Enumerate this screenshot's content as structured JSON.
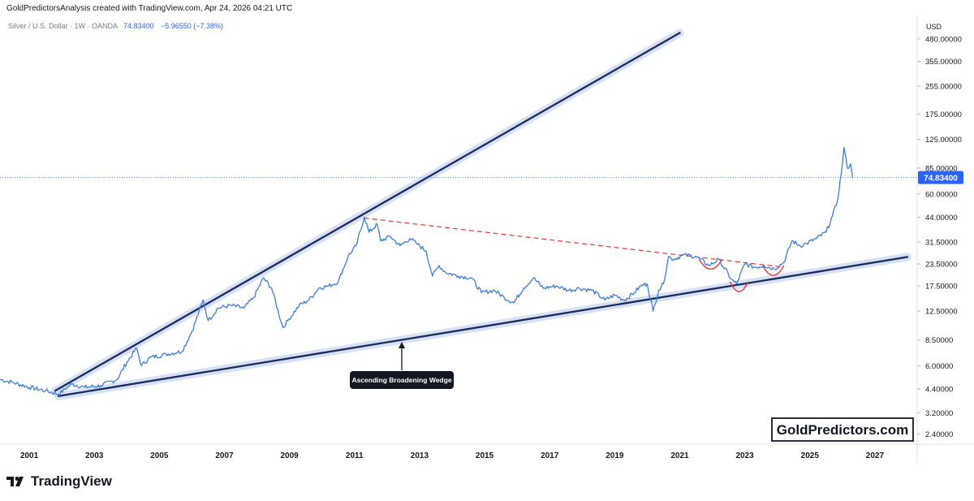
{
  "header": {
    "text": "GoldPredictorsAnalysis created with TradingView.com, Apr 24, 2026 04:21 UTC"
  },
  "legend": {
    "symbol": "Silver / U.S. Dollar · 1W · OANDA",
    "price": "74.83400",
    "change": "−5.96550 (−7.38%)",
    "price_color": "#2962ff",
    "change_color": "#2962ff"
  },
  "currency_label": "USD",
  "watermark": "GoldPredictors.com",
  "pattern_label": "Ascending Broadening Wedge",
  "brand": {
    "name": "TradingView",
    "icon": "tradingview-logo-icon"
  },
  "colors": {
    "series": "#3b7dd8",
    "trendline": "#1a2a5e",
    "trendline_glow": "#c9d7f2",
    "resistance_dashed": "#e53935",
    "cup_arcs": "#e53935",
    "last_price_tag": "#2962ff",
    "last_price_line": "#2962ff"
  },
  "chart_data": {
    "type": "line",
    "title": "Silver / U.S. Dollar · 1W · OANDA",
    "xlabel": "",
    "ylabel": "USD",
    "scale": "log",
    "grid": false,
    "x_ticks": [
      "2001",
      "2003",
      "2005",
      "2007",
      "2009",
      "2011",
      "2013",
      "2015",
      "2017",
      "2019",
      "2021",
      "2023",
      "2025",
      "2027"
    ],
    "y_ticks": [
      "480.00000",
      "355.00000",
      "255.00000",
      "175.00000",
      "125.00000",
      "85.00000",
      "60.00000",
      "44.00000",
      "31.50000",
      "23.50000",
      "17.50000",
      "12.50000",
      "8.50000",
      "6.00000",
      "4.40000",
      "3.20000",
      "2.40000"
    ],
    "ylim": [
      2.1,
      650
    ],
    "xlim": [
      2000.1,
      2028.3
    ],
    "last_price": 74.834,
    "series": [
      {
        "name": "Silver / U.S. Dollar",
        "x": [
          2000.1,
          2000.5,
          2001.0,
          2001.5,
          2001.9,
          2002.3,
          2002.7,
          2003.2,
          2003.7,
          2004.0,
          2004.3,
          2004.45,
          2004.7,
          2005.2,
          2005.7,
          2006.0,
          2006.35,
          2006.5,
          2006.8,
          2007.2,
          2007.6,
          2007.9,
          2008.2,
          2008.45,
          2008.8,
          2008.95,
          2009.3,
          2009.6,
          2009.9,
          2010.2,
          2010.5,
          2010.8,
          2011.05,
          2011.3,
          2011.45,
          2011.7,
          2011.8,
          2012.1,
          2012.4,
          2012.7,
          2012.9,
          2013.2,
          2013.4,
          2013.6,
          2013.8,
          2014.2,
          2014.6,
          2014.9,
          2015.3,
          2015.6,
          2015.9,
          2016.2,
          2016.5,
          2016.8,
          2017.2,
          2017.6,
          2017.9,
          2018.3,
          2018.7,
          2019.0,
          2019.3,
          2019.6,
          2019.8,
          2020.0,
          2020.18,
          2020.35,
          2020.5,
          2020.65,
          2020.8,
          2021.1,
          2021.5,
          2021.9,
          2022.2,
          2022.6,
          2022.75,
          2023.0,
          2023.3,
          2023.6,
          2023.9,
          2024.2,
          2024.45,
          2024.7,
          2024.9,
          2025.2,
          2025.5,
          2025.7,
          2025.85,
          2025.97,
          2026.05,
          2026.15,
          2026.25,
          2026.31
        ],
        "values": [
          5.0,
          4.8,
          4.5,
          4.3,
          4.1,
          4.7,
          4.5,
          4.6,
          5.0,
          6.3,
          7.6,
          6.0,
          6.7,
          7.0,
          7.3,
          9.5,
          14.5,
          11.0,
          13.0,
          13.5,
          13.0,
          15.0,
          19.5,
          17.0,
          10.0,
          11.0,
          13.5,
          14.5,
          17.0,
          17.5,
          18.5,
          26.0,
          30.0,
          44.0,
          36.0,
          40.0,
          32.0,
          34.0,
          30.0,
          33.0,
          31.0,
          28.0,
          20.0,
          23.0,
          21.0,
          20.0,
          19.5,
          16.0,
          16.5,
          15.0,
          14.0,
          17.0,
          19.5,
          17.0,
          17.5,
          16.5,
          17.0,
          16.5,
          14.5,
          15.5,
          14.5,
          16.0,
          17.5,
          18.0,
          12.5,
          16.5,
          18.0,
          26.0,
          25.0,
          26.5,
          26.0,
          23.0,
          25.0,
          19.0,
          18.0,
          23.5,
          22.5,
          23.0,
          22.0,
          24.0,
          32.0,
          30.0,
          31.0,
          33.0,
          36.0,
          45.0,
          55.0,
          80.0,
          112.0,
          85.0,
          90.0,
          74.834
        ]
      }
    ],
    "annotations": [
      {
        "type": "trendline",
        "role": "upper",
        "x": [
          2001.8,
          2021.0
        ],
        "values": [
          4.3,
          520
        ]
      },
      {
        "type": "trendline",
        "role": "lower",
        "x": [
          2001.9,
          2028.0
        ],
        "values": [
          4.0,
          25.8
        ]
      },
      {
        "type": "dashed",
        "role": "resistance",
        "x": [
          2011.3,
          2024.2
        ],
        "values": [
          43.5,
          22.5
        ]
      },
      {
        "type": "arc",
        "role": "cup",
        "x": [
          2021.6,
          2022.3
        ],
        "values": [
          25.0,
          25.0
        ]
      },
      {
        "type": "arc",
        "role": "cup",
        "x": [
          2022.55,
          2023.1
        ],
        "values": [
          18.5,
          18.5
        ]
      },
      {
        "type": "arc",
        "role": "cup",
        "x": [
          2023.55,
          2024.2
        ],
        "values": [
          23.0,
          23.0
        ]
      }
    ]
  }
}
